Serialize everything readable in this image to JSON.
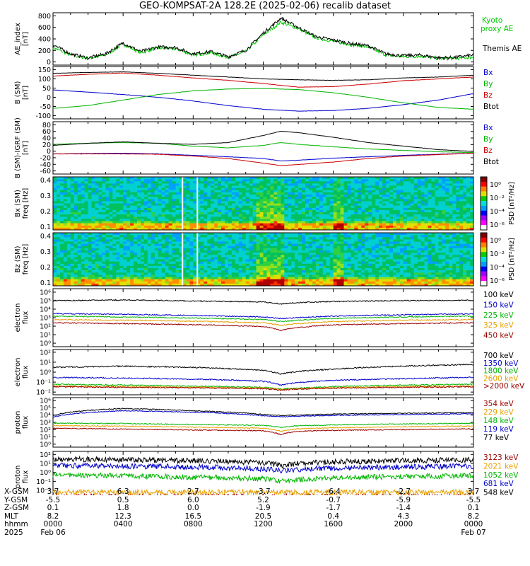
{
  "title": "GEO-KOMPSAT-2A 128.2E (2025-02-06) recalib dataset",
  "chart_data": [
    {
      "type": "line",
      "panel": "ae_index",
      "ylabel": [
        "AE_index",
        "[nT]"
      ],
      "ylim": [
        0,
        800
      ],
      "yticks": [
        "800",
        "600",
        "400",
        "200",
        "0"
      ],
      "series": [
        {
          "name": "Kyoto",
          "name2": "proxy AE",
          "color": "#00cc00",
          "x": [
            0,
            1,
            2,
            3,
            4,
            5,
            6,
            7,
            8,
            9,
            10,
            11,
            12,
            13,
            14,
            15,
            16,
            17,
            18,
            19,
            20,
            21,
            22,
            23,
            24
          ],
          "y": [
            250,
            120,
            60,
            120,
            310,
            160,
            240,
            230,
            120,
            160,
            80,
            180,
            470,
            690,
            580,
            420,
            360,
            300,
            260,
            120,
            90,
            100,
            60,
            60,
            80
          ]
        },
        {
          "name": "Themis AE",
          "color": "#000000",
          "x": [
            0,
            1,
            2,
            3,
            4,
            5,
            6,
            7,
            8,
            9,
            10,
            11,
            12,
            13,
            14,
            15,
            16,
            17,
            18,
            19,
            20,
            21,
            22,
            23,
            24
          ],
          "y": [
            300,
            140,
            70,
            140,
            330,
            180,
            260,
            250,
            140,
            180,
            90,
            200,
            500,
            760,
            600,
            440,
            380,
            320,
            280,
            140,
            110,
            120,
            70,
            80,
            120
          ]
        }
      ]
    },
    {
      "type": "line",
      "panel": "b_sm",
      "ylabel": [
        "B (SM)",
        "[nT]"
      ],
      "ylim": [
        -100,
        150
      ],
      "yticks": [
        "150",
        "100",
        "50",
        "0",
        "-50",
        "-100"
      ],
      "series": [
        {
          "name": "Bx",
          "color": "#0000cc",
          "x": [
            0,
            2,
            4,
            6,
            8,
            10,
            12,
            14,
            16,
            18,
            20,
            22,
            24
          ],
          "y": [
            40,
            28,
            15,
            0,
            -20,
            -45,
            -65,
            -75,
            -72,
            -60,
            -40,
            -15,
            20
          ]
        },
        {
          "name": "By",
          "color": "#00b400",
          "x": [
            0,
            2,
            4,
            6,
            8,
            10,
            12,
            14,
            16,
            18,
            20,
            22,
            24
          ],
          "y": [
            -60,
            -45,
            -15,
            15,
            35,
            45,
            48,
            42,
            25,
            0,
            -30,
            -55,
            -65
          ]
        },
        {
          "name": "Bz",
          "color": "#cc0000",
          "x": [
            0,
            2,
            4,
            6,
            8,
            10,
            12,
            14,
            16,
            18,
            20,
            22,
            24
          ],
          "y": [
            115,
            125,
            132,
            120,
            105,
            92,
            75,
            55,
            58,
            72,
            90,
            100,
            110
          ]
        },
        {
          "name": "Btot",
          "color": "#000000",
          "x": [
            0,
            2,
            4,
            6,
            8,
            10,
            12,
            14,
            16,
            18,
            20,
            22,
            24
          ],
          "y": [
            130,
            135,
            138,
            130,
            120,
            110,
            100,
            95,
            92,
            95,
            105,
            110,
            120
          ]
        }
      ]
    },
    {
      "type": "line",
      "panel": "b_sm_minus_igrf",
      "ylabel": [
        "B (SM)-IGRF (SM)",
        "[nT]"
      ],
      "ylim": [
        -50,
        80
      ],
      "yticks": [
        "80",
        "60",
        "40",
        "20",
        "0",
        "-20",
        "-40",
        "-60"
      ],
      "series": [
        {
          "name": "Bx",
          "color": "#0000cc",
          "x": [
            0,
            2,
            4,
            6,
            8,
            10,
            12,
            13,
            14,
            16,
            18,
            20,
            22,
            24
          ],
          "y": [
            -2,
            -1,
            0,
            -2,
            -6,
            -10,
            -15,
            -22,
            -20,
            -14,
            -10,
            -6,
            -3,
            0
          ]
        },
        {
          "name": "By",
          "color": "#00b400",
          "x": [
            0,
            2,
            4,
            6,
            8,
            10,
            12,
            13,
            14,
            16,
            18,
            20,
            22,
            24
          ],
          "y": [
            25,
            28,
            30,
            28,
            20,
            15,
            22,
            30,
            25,
            18,
            12,
            8,
            4,
            2
          ]
        },
        {
          "name": "Bz",
          "color": "#cc0000",
          "x": [
            0,
            2,
            4,
            6,
            8,
            10,
            12,
            13,
            14,
            16,
            18,
            20,
            22,
            24
          ],
          "y": [
            -2,
            -2,
            -2,
            -3,
            -8,
            -15,
            -28,
            -35,
            -32,
            -25,
            -15,
            -8,
            -4,
            0
          ]
        },
        {
          "name": "Btot",
          "color": "#000000",
          "x": [
            0,
            2,
            4,
            6,
            8,
            10,
            12,
            13,
            14,
            16,
            18,
            20,
            22,
            24
          ],
          "y": [
            22,
            28,
            32,
            28,
            25,
            30,
            50,
            62,
            58,
            45,
            30,
            20,
            10,
            5
          ]
        }
      ]
    },
    {
      "type": "heatmap",
      "panel": "bx_spectrogram",
      "ylabel": [
        "Bx (SM)",
        "freq [Hz]"
      ],
      "ylim": [
        0.05,
        0.5
      ],
      "yticks": [
        "0.4",
        "0.3",
        "0.2",
        "0.1"
      ],
      "colorbar_label": "PSD [nT²/Hz]",
      "colorbar_ticks": [
        "10⁰",
        "10⁻²",
        "10⁻⁴",
        "10⁻⁶"
      ]
    },
    {
      "type": "heatmap",
      "panel": "bz_spectrogram",
      "ylabel": [
        "Bz (SM)",
        "freq [Hz]"
      ],
      "ylim": [
        0.05,
        0.5
      ],
      "yticks": [
        "0.4",
        "0.3",
        "0.2",
        "0.1"
      ],
      "colorbar_label": "PSD [nT²/Hz]",
      "colorbar_ticks": [
        "10⁰",
        "10⁻²",
        "10⁻⁴",
        "10⁻⁶"
      ]
    },
    {
      "type": "line",
      "panel": "electron_flux_low",
      "ylabel": [
        "electron",
        "flux"
      ],
      "yscale": "log",
      "ylim": [
        1,
        1000000
      ],
      "yticks": [
        "10⁶",
        "10⁵",
        "10⁴",
        "10³",
        "10²",
        "10¹",
        "10⁰"
      ],
      "series": [
        {
          "name": "100 keV",
          "color": "#000000",
          "x": [
            0,
            4,
            8,
            12,
            13,
            14,
            16,
            20,
            24
          ],
          "y": [
            100000,
            120000,
            90000,
            70000,
            40000,
            60000,
            80000,
            100000,
            110000
          ]
        },
        {
          "name": "150 keV",
          "color": "#0000cc",
          "x": [
            0,
            4,
            8,
            12,
            13,
            14,
            16,
            20,
            24
          ],
          "y": [
            3000,
            2500,
            1800,
            1200,
            800,
            1000,
            1500,
            2200,
            2800
          ]
        },
        {
          "name": "225 keV",
          "color": "#00b400",
          "x": [
            0,
            4,
            8,
            12,
            13,
            14,
            16,
            20,
            24
          ],
          "y": [
            1500,
            1200,
            900,
            600,
            350,
            500,
            800,
            1200,
            1500
          ]
        },
        {
          "name": "325 keV",
          "color": "#e8a000",
          "x": [
            0,
            4,
            8,
            12,
            13,
            14,
            16,
            20,
            24
          ],
          "y": [
            600,
            500,
            380,
            250,
            120,
            200,
            350,
            500,
            600
          ]
        },
        {
          "name": "450 keV",
          "color": "#990000",
          "x": [
            0,
            4,
            8,
            12,
            13,
            14,
            16,
            20,
            24
          ],
          "y": [
            250,
            200,
            150,
            90,
            30,
            70,
            140,
            200,
            250
          ]
        }
      ]
    },
    {
      "type": "line",
      "panel": "electron_flux_high",
      "ylabel": [
        "electron",
        "flux"
      ],
      "yscale": "log",
      "ylim": [
        0.01,
        100
      ],
      "yticks": [
        "10²",
        "10¹",
        "10⁰",
        "10⁻¹",
        "10⁻²"
      ],
      "series": [
        {
          "name": "700 keV",
          "color": "#000000",
          "x": [
            0,
            4,
            8,
            12,
            13,
            14,
            16,
            20,
            24
          ],
          "y": [
            3,
            4,
            3,
            1.5,
            0.6,
            1.2,
            2,
            4,
            6
          ]
        },
        {
          "name": "1350 keV",
          "color": "#0000cc",
          "x": [
            0,
            4,
            8,
            12,
            13,
            14,
            16,
            20,
            24
          ],
          "y": [
            0.3,
            0.25,
            0.2,
            0.12,
            0.05,
            0.09,
            0.15,
            0.22,
            0.3
          ]
        },
        {
          "name": "1800 keV",
          "color": "#00b400",
          "x": [
            0,
            4,
            8,
            12,
            13,
            14,
            16,
            20,
            24
          ],
          "y": [
            0.06,
            0.05,
            0.04,
            0.03,
            0.02,
            0.025,
            0.035,
            0.05,
            0.06
          ]
        },
        {
          "name": "2600 keV",
          "color": "#e8a000",
          "x": [
            0,
            4,
            8,
            12,
            13,
            14,
            16,
            20,
            24
          ],
          "y": [
            0.04,
            0.035,
            0.03,
            0.025,
            0.018,
            0.022,
            0.028,
            0.035,
            0.04
          ]
        },
        {
          "name": ">2000 keV",
          "color": "#990000",
          "x": [
            0,
            4,
            8,
            12,
            13,
            14,
            16,
            20,
            24
          ],
          "y": [
            0.035,
            0.03,
            0.027,
            0.022,
            0.016,
            0.02,
            0.025,
            0.03,
            0.035
          ]
        }
      ]
    },
    {
      "type": "line",
      "panel": "proton_flux_low",
      "ylabel": [
        "proton",
        "flux"
      ],
      "yscale": "log",
      "ylim": [
        1,
        1000000
      ],
      "yticks": [
        "10⁶",
        "10⁵",
        "10⁴",
        "10³",
        "10²",
        "10¹",
        "10⁰"
      ],
      "series": [
        {
          "name": "354 keV",
          "color": "#990000",
          "x": [
            0,
            4,
            8,
            12,
            13,
            14,
            16,
            20,
            24
          ],
          "y": [
            150,
            120,
            90,
            70,
            20,
            60,
            80,
            100,
            130
          ]
        },
        {
          "name": "229 keV",
          "color": "#e8a000",
          "x": [
            0,
            4,
            8,
            12,
            13,
            14,
            16,
            20,
            24
          ],
          "y": [
            350,
            300,
            220,
            160,
            60,
            130,
            180,
            250,
            320
          ]
        },
        {
          "name": "148 keV",
          "color": "#00b400",
          "x": [
            0,
            4,
            8,
            12,
            13,
            14,
            16,
            20,
            24
          ],
          "y": [
            800,
            700,
            500,
            400,
            200,
            350,
            450,
            600,
            750
          ]
        },
        {
          "name": "119 keV",
          "color": "#0000cc",
          "x": [
            0,
            4,
            8,
            12,
            13,
            14,
            16,
            20,
            24
          ],
          "y": [
            5000,
            40000,
            25000,
            8000,
            6000,
            7000,
            9000,
            12000,
            15000
          ]
        },
        {
          "name": "77 keV",
          "color": "#000000",
          "x": [
            0,
            4,
            8,
            12,
            13,
            14,
            16,
            20,
            24
          ],
          "y": [
            8000,
            80000,
            40000,
            12000,
            9000,
            10000,
            14000,
            18000,
            22000
          ]
        }
      ]
    },
    {
      "type": "line",
      "panel": "proton_flux_high",
      "ylabel": [
        "proton",
        "flux"
      ],
      "yscale": "log",
      "ylim": [
        0.001,
        100
      ],
      "yticks": [
        "10²",
        "10¹",
        "10⁰",
        "10⁻¹",
        "10⁻²",
        "10⁻³"
      ],
      "series": [
        {
          "name": "3123 keV",
          "color": "#990000",
          "x": [
            0,
            4,
            8,
            12,
            13,
            14,
            16,
            20,
            24
          ],
          "y": [
            0.002,
            0.002,
            0.002,
            0.002,
            0.002,
            0.002,
            0.002,
            0.002,
            0.002
          ]
        },
        {
          "name": "2021 keV",
          "color": "#e8a000",
          "x": [
            0,
            4,
            8,
            12,
            13,
            14,
            16,
            20,
            24
          ],
          "y": [
            0.006,
            0.006,
            0.006,
            0.006,
            0.006,
            0.006,
            0.006,
            0.006,
            0.006
          ]
        },
        {
          "name": "1052 keV",
          "color": "#00b400",
          "x": [
            0,
            4,
            8,
            12,
            13,
            14,
            16,
            20,
            24
          ],
          "y": [
            0.5,
            0.4,
            0.3,
            0.2,
            0.1,
            0.15,
            0.25,
            0.35,
            0.45
          ]
        },
        {
          "name": "681 keV",
          "color": "#0000cc",
          "x": [
            0,
            4,
            8,
            12,
            13,
            14,
            16,
            20,
            24
          ],
          "y": [
            6,
            5,
            4,
            2.5,
            1.5,
            2,
            3,
            4,
            5
          ]
        },
        {
          "name": "548 keV",
          "color": "#000000",
          "x": [
            0,
            4,
            8,
            12,
            13,
            14,
            16,
            20,
            24
          ],
          "y": [
            30,
            25,
            20,
            12,
            6,
            10,
            15,
            20,
            25
          ]
        }
      ]
    }
  ],
  "ephemeris": {
    "labels": [
      "X-GSM",
      "Y-GSM",
      "Z-GSM",
      "MLT",
      "hhmm",
      "2025"
    ],
    "columns": [
      {
        "x_hour": 0,
        "values": [
          "3.7",
          "-5.5",
          "0.1",
          "8.2",
          "0000",
          "Feb 06"
        ]
      },
      {
        "x_hour": 4,
        "values": [
          "6.3",
          "0.5",
          "1.8",
          "12.3",
          "0400",
          ""
        ]
      },
      {
        "x_hour": 8,
        "values": [
          "2.7",
          "6.0",
          "0.0",
          "16.5",
          "0800",
          ""
        ]
      },
      {
        "x_hour": 12,
        "values": [
          "-3.7",
          "5.2",
          "-1.9",
          "20.5",
          "1200",
          ""
        ]
      },
      {
        "x_hour": 16,
        "values": [
          "-6.4",
          "-0.7",
          "-1.7",
          "0.4",
          "1600",
          ""
        ]
      },
      {
        "x_hour": 20,
        "values": [
          "-2.7",
          "-5.9",
          "-1.4",
          "4.3",
          "2000",
          ""
        ]
      },
      {
        "x_hour": 24,
        "values": [
          "3.7",
          "-5.5",
          "0.1",
          "8.2",
          "0000",
          "Feb 07"
        ]
      }
    ]
  }
}
